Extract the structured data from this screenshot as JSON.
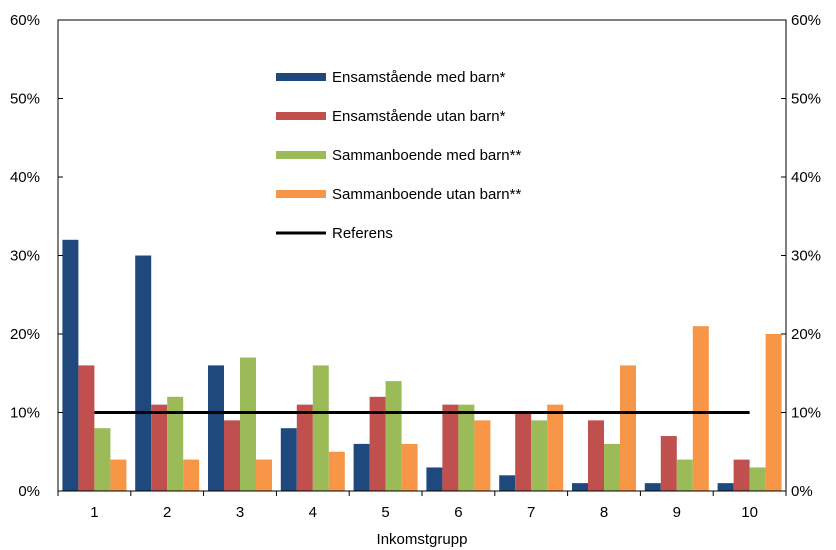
{
  "chart_data": {
    "type": "bar",
    "xlabel": "Inkomstgrupp",
    "ylabel": "",
    "ylim": [
      0,
      60
    ],
    "y_tick_labels": [
      "0%",
      "10%",
      "20%",
      "30%",
      "40%",
      "50%",
      "60%"
    ],
    "y_tick_values": [
      0,
      10,
      20,
      30,
      40,
      50,
      60
    ],
    "categories": [
      "1",
      "2",
      "3",
      "4",
      "5",
      "6",
      "7",
      "8",
      "9",
      "10"
    ],
    "series": [
      {
        "name": "Ensamstående med barn*",
        "color": "#1f497d",
        "values": [
          32,
          30,
          16,
          8,
          6,
          3,
          2,
          1,
          1,
          1
        ]
      },
      {
        "name": "Ensamstående utan barn*",
        "color": "#c0504d",
        "values": [
          16,
          11,
          9,
          11,
          12,
          11,
          10,
          9,
          7,
          4
        ]
      },
      {
        "name": "Sammanboende med barn**",
        "color": "#9bbb59",
        "values": [
          8,
          12,
          17,
          16,
          14,
          11,
          9,
          6,
          4,
          3
        ]
      },
      {
        "name": "Sammanboende utan barn**",
        "color": "#f79646",
        "values": [
          4,
          4,
          4,
          5,
          6,
          9,
          11,
          16,
          21,
          20
        ]
      }
    ],
    "reference": {
      "name": "Referens",
      "color": "#000000",
      "value": 10,
      "from": "1",
      "to": "10"
    },
    "grid": false,
    "legend_position": "top-center"
  }
}
